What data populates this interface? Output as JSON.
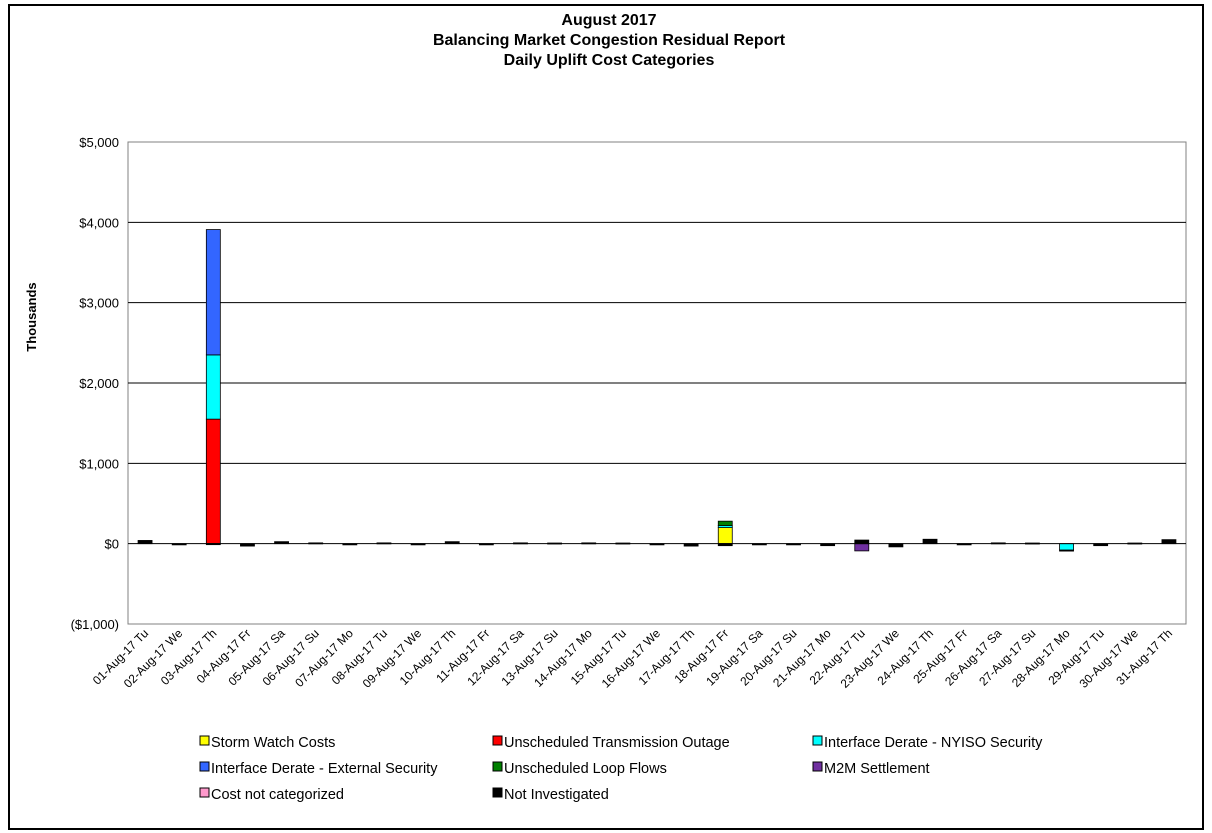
{
  "chart_data": {
    "type": "bar",
    "stacked": true,
    "title": [
      "August 2017",
      "Balancing Market Congestion Residual Report",
      "Daily Uplift Cost Categories"
    ],
    "ylabel": "Thousands",
    "ylim": [
      -1000,
      5000
    ],
    "yticks": [
      {
        "value": 5000,
        "label": "$5,000"
      },
      {
        "value": 4000,
        "label": "$4,000"
      },
      {
        "value": 3000,
        "label": "$3,000"
      },
      {
        "value": 2000,
        "label": "$2,000"
      },
      {
        "value": 1000,
        "label": "$1,000"
      },
      {
        "value": 0,
        "label": "$0"
      },
      {
        "value": -1000,
        "label": "($1,000)"
      }
    ],
    "negative_tick_color": "#ff0000",
    "grid": true,
    "legend_position": "bottom",
    "categories": [
      "01-Aug-17 Tu",
      "02-Aug-17 We",
      "03-Aug-17 Th",
      "04-Aug-17 Fr",
      "05-Aug-17 Sa",
      "06-Aug-17 Su",
      "07-Aug-17 Mo",
      "08-Aug-17 Tu",
      "09-Aug-17 We",
      "10-Aug-17 Th",
      "11-Aug-17 Fr",
      "12-Aug-17 Sa",
      "13-Aug-17 Su",
      "14-Aug-17 Mo",
      "15-Aug-17 Tu",
      "16-Aug-17 We",
      "17-Aug-17 Th",
      "18-Aug-17 Fr",
      "19-Aug-17 Sa",
      "20-Aug-17 Su",
      "21-Aug-17 Mo",
      "22-Aug-17 Tu",
      "23-Aug-17 We",
      "24-Aug-17 Th",
      "25-Aug-17 Fr",
      "26-Aug-17 Sa",
      "27-Aug-17 Su",
      "28-Aug-17 Mo",
      "29-Aug-17 Tu",
      "30-Aug-17 We",
      "31-Aug-17 Th"
    ],
    "series": [
      {
        "name": "Storm Watch Costs",
        "color": "#ffff00",
        "values": [
          0,
          0,
          0,
          0,
          0,
          0,
          0,
          0,
          0,
          0,
          0,
          0,
          0,
          0,
          0,
          0,
          0,
          200,
          0,
          0,
          0,
          0,
          0,
          0,
          0,
          0,
          0,
          0,
          0,
          0,
          0
        ]
      },
      {
        "name": "Unscheduled Transmission Outage",
        "color": "#ff0000",
        "values": [
          0,
          0,
          1550,
          0,
          0,
          0,
          0,
          0,
          0,
          0,
          0,
          0,
          0,
          0,
          0,
          0,
          0,
          0,
          0,
          0,
          0,
          0,
          0,
          0,
          0,
          0,
          0,
          0,
          0,
          0,
          0
        ]
      },
      {
        "name": "Interface Derate - NYISO Security",
        "color": "#00ffff",
        "values": [
          0,
          0,
          800,
          0,
          0,
          0,
          0,
          0,
          0,
          0,
          0,
          0,
          0,
          0,
          0,
          0,
          0,
          25,
          0,
          0,
          0,
          0,
          0,
          0,
          0,
          0,
          0,
          -80,
          0,
          0,
          0
        ]
      },
      {
        "name": "Interface Derate - External Security",
        "color": "#3366ff",
        "values": [
          0,
          0,
          1560,
          0,
          0,
          0,
          0,
          0,
          0,
          0,
          0,
          0,
          0,
          0,
          0,
          0,
          0,
          0,
          0,
          0,
          0,
          0,
          0,
          0,
          0,
          0,
          0,
          0,
          0,
          0,
          0
        ]
      },
      {
        "name": "Unscheduled Loop Flows",
        "color": "#008000",
        "values": [
          0,
          0,
          0,
          0,
          0,
          0,
          0,
          0,
          0,
          0,
          0,
          0,
          0,
          0,
          0,
          0,
          0,
          55,
          0,
          0,
          0,
          0,
          0,
          0,
          0,
          0,
          0,
          0,
          0,
          0,
          0
        ]
      },
      {
        "name": "M2M Settlement",
        "color": "#7030a0",
        "values": [
          0,
          0,
          0,
          0,
          0,
          0,
          0,
          0,
          0,
          0,
          0,
          0,
          0,
          0,
          0,
          0,
          0,
          0,
          0,
          0,
          0,
          -90,
          0,
          0,
          0,
          0,
          0,
          0,
          0,
          0,
          0
        ]
      },
      {
        "name": "Cost not categorized",
        "color": "#ff99cc",
        "values": [
          0,
          0,
          0,
          0,
          0,
          0,
          0,
          0,
          0,
          0,
          0,
          0,
          0,
          0,
          0,
          0,
          0,
          0,
          0,
          0,
          0,
          0,
          0,
          0,
          0,
          0,
          0,
          0,
          0,
          0,
          0
        ]
      },
      {
        "name": "Not Investigated",
        "color": "#000000",
        "values": [
          40,
          -15,
          -10,
          -30,
          25,
          10,
          -15,
          10,
          -15,
          25,
          -15,
          10,
          8,
          10,
          8,
          -15,
          -30,
          -25,
          -15,
          -15,
          -25,
          45,
          -40,
          55,
          -15,
          10,
          8,
          -10,
          -25,
          8,
          50
        ]
      }
    ]
  }
}
